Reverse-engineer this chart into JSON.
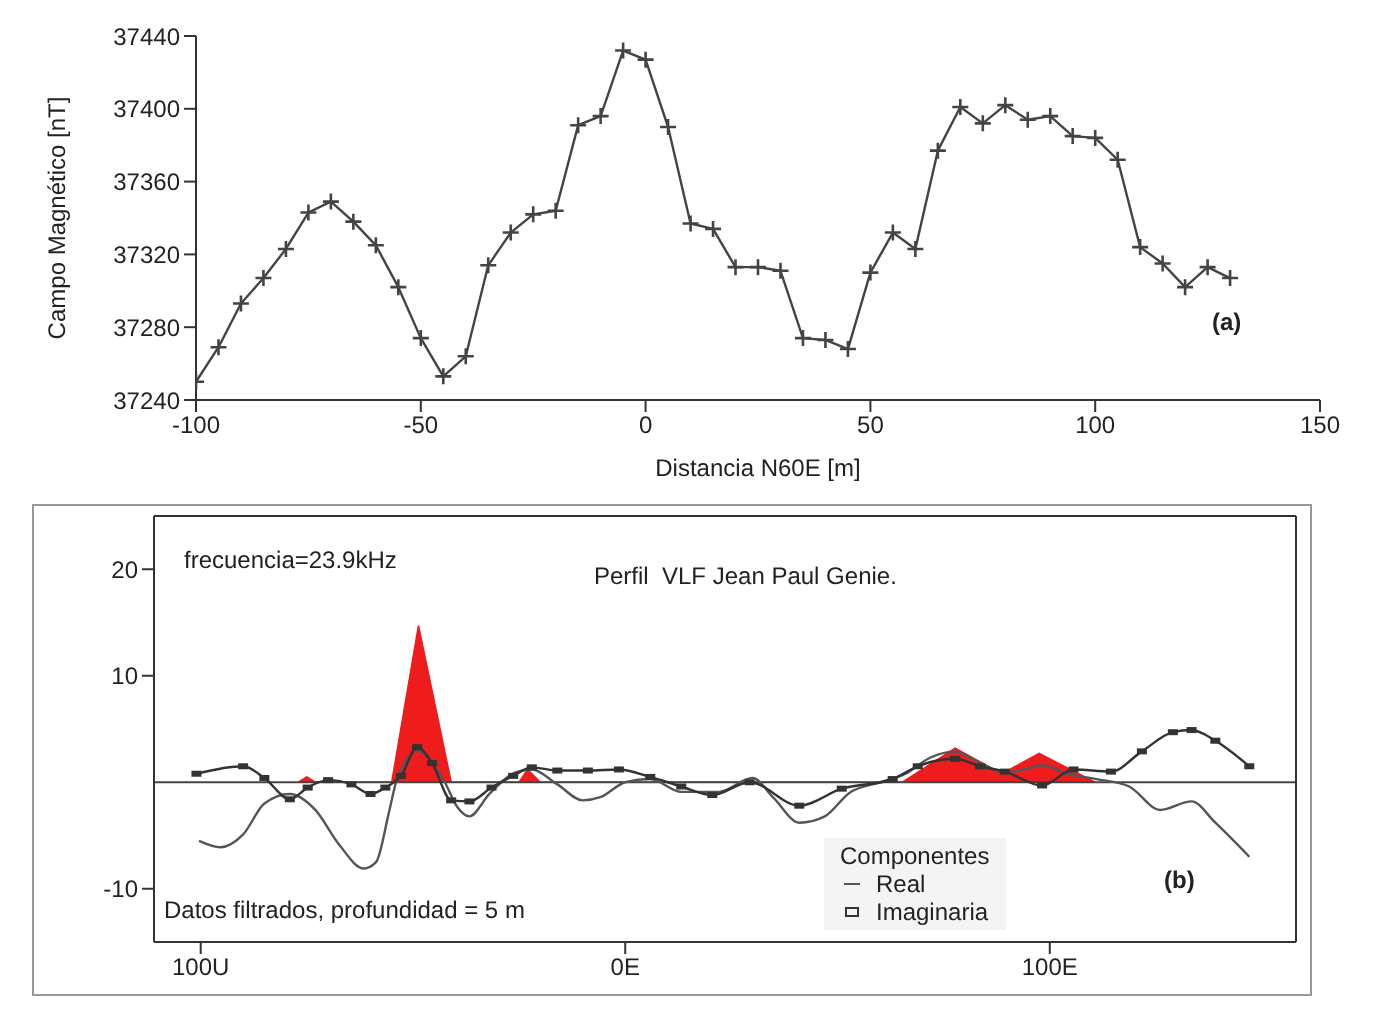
{
  "chart_data": [
    {
      "type": "line",
      "xlabel": "Distancia N60E [m]",
      "ylabel": "Campo Magnético [nT]",
      "annotations": [
        "(a)"
      ],
      "xlim": [
        -100,
        150
      ],
      "xticks": [
        -100,
        -50,
        0,
        50,
        100,
        150
      ],
      "ylim": [
        37240,
        37440
      ],
      "yticks": [
        37240,
        37280,
        37320,
        37360,
        37400,
        37440
      ],
      "grid": false,
      "legend": false,
      "marker": "cross",
      "series": [
        {
          "color": "#444444",
          "x": [
            -100,
            -95,
            -90,
            -85,
            -80,
            -75,
            -70,
            -65,
            -60,
            -55,
            -50,
            -45,
            -40,
            -35,
            -30,
            -25,
            -20,
            -15,
            -10,
            -5,
            0,
            5,
            10,
            15,
            20,
            25,
            30,
            35,
            40,
            45,
            50,
            55,
            60,
            65,
            70,
            75,
            80,
            85,
            90,
            95,
            100,
            105,
            110,
            115,
            120,
            125,
            130
          ],
          "values": [
            37250,
            37269,
            37293,
            37307,
            37323,
            37343,
            37349,
            37338,
            37325,
            37302,
            37274,
            37253,
            37264,
            37314,
            37332,
            37342,
            37344,
            37391,
            37396,
            37432,
            37427,
            37390,
            37337,
            37334,
            37313,
            37313,
            37311,
            37274,
            37273,
            37268,
            37310,
            37332,
            37323,
            37377,
            37401,
            37392,
            37402,
            37394,
            37396,
            37385,
            37384,
            37372,
            37324,
            37315,
            37302,
            37313,
            37307
          ]
        }
      ]
    },
    {
      "type": "line",
      "title": "Perfil  VLF Jean Paul Genie.",
      "legend_title": "Componentes",
      "annotations": [
        "frecuencia=23.9kHz",
        "Datos filtrados, profundidad = 5 m",
        "(b)"
      ],
      "xlim": [
        -111,
        158
      ],
      "xticks": [
        {
          "value": -100,
          "label": "100U"
        },
        {
          "value": 0,
          "label": "0E"
        },
        {
          "value": 100,
          "label": "100E"
        }
      ],
      "ylim": [
        -15,
        25
      ],
      "yticks": [
        -10,
        10,
        20
      ],
      "grid": false,
      "legend": "bottom",
      "ref_lines": [
        {
          "axis": "y",
          "value": 0,
          "color": "#444444"
        }
      ],
      "series": [
        {
          "type": "area",
          "color": "#ee1c1c",
          "x": [
            -77,
            -75,
            -73,
            -55,
            -48.7,
            -41,
            -25,
            -23,
            -20,
            65.3,
            77.7,
            88.7,
            97.5,
            110.7
          ],
          "values": [
            0,
            0.5,
            0,
            0,
            14.7,
            0,
            0,
            1.2,
            0,
            0,
            3.2,
            0.8,
            2.7,
            0
          ]
        },
        {
          "name": "Real",
          "color": "#555555",
          "marker": "none",
          "x": [
            -100.4,
            -95.3,
            -90,
            -85,
            -79,
            -73,
            -67.5,
            -61.6,
            -58.7,
            -55.7,
            -54,
            -51,
            -49,
            -46,
            -42.5,
            -39.6,
            -36.7,
            -32,
            -26,
            -22,
            -16,
            -10,
            -5.9,
            0,
            5.9,
            13.2,
            22,
            30,
            35,
            41,
            47,
            52.8,
            60,
            66,
            71.8,
            77.7,
            83.6,
            89.4,
            93.8,
            98.2,
            104,
            111,
            118.7,
            126,
            133.4,
            139,
            147
          ],
          "values": [
            -5.5,
            -6.1,
            -4.9,
            -2,
            -1.1,
            -2.6,
            -5.8,
            -8.1,
            -7.5,
            -2.9,
            0,
            2.4,
            3,
            2.1,
            0,
            -2.3,
            -3.2,
            -1.1,
            0.9,
            1.2,
            -0.2,
            -1.7,
            -1.4,
            0,
            0.3,
            -0.9,
            -0.9,
            0.4,
            -1.5,
            -3.8,
            -3.2,
            -1,
            0,
            0.8,
            2.3,
            2.9,
            1.8,
            0.9,
            1.2,
            1.6,
            0.8,
            0.3,
            -0.4,
            -2.6,
            -1.8,
            -3.8,
            -7
          ]
        },
        {
          "name": "Imaginaria",
          "color": "#333333",
          "marker": "square",
          "x": [
            -101,
            -90,
            -85,
            -79,
            -74.8,
            -70,
            -64.5,
            -60,
            -56.5,
            -52.8,
            -49,
            -45.5,
            -41,
            -36.7,
            -31.5,
            -26.4,
            -22,
            -16,
            -8.8,
            -1.5,
            5.9,
            13.2,
            20.5,
            29.3,
            41,
            51,
            63,
            68.9,
            77.7,
            83.6,
            89.4,
            98.2,
            105.6,
            114.4,
            121.7,
            129,
            133.4,
            139,
            147
          ],
          "values": [
            0.8,
            1.5,
            0.4,
            -1.6,
            -0.5,
            0.2,
            -0.2,
            -1.1,
            -0.5,
            0.6,
            3.3,
            1.8,
            -1.7,
            -1.8,
            -0.5,
            0.6,
            1.4,
            1.1,
            1.1,
            1.2,
            0.5,
            -0.4,
            -1.2,
            0,
            -2.2,
            -0.6,
            0.3,
            1.5,
            2.2,
            1.5,
            1,
            -0.3,
            1.2,
            1,
            2.9,
            4.7,
            4.9,
            3.9,
            1.5
          ]
        }
      ]
    }
  ]
}
